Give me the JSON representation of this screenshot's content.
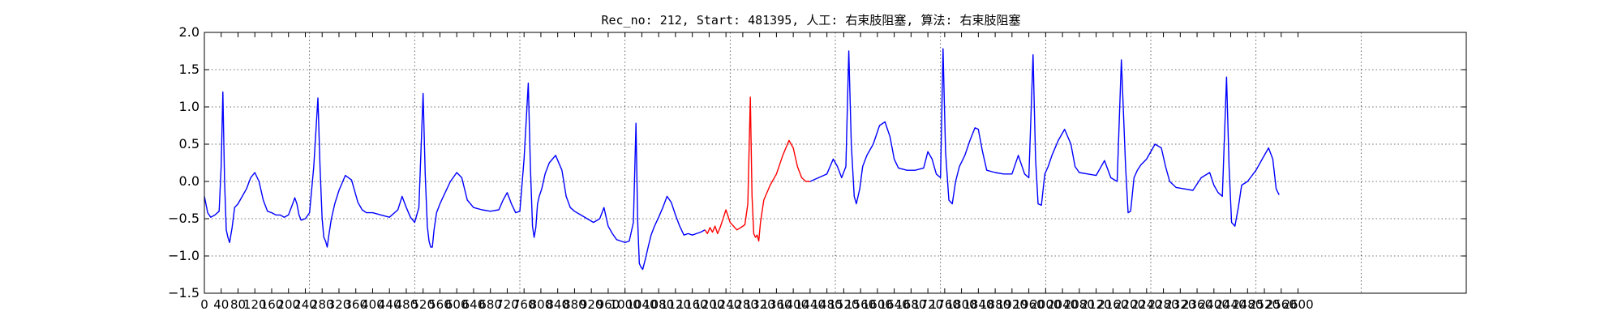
{
  "chart_data": {
    "type": "line",
    "title": "Rec_no: 212, Start: 481395, 人工: 右束肢阻塞, 算法: 右束肢阻塞",
    "xlabel": "",
    "ylabel": "",
    "xlim": [
      0,
      3000
    ],
    "ylim": [
      -1.5,
      2.0
    ],
    "grid": true,
    "y_ticks": [
      -1.5,
      -1.0,
      -0.5,
      0.0,
      0.5,
      1.0,
      1.5,
      2.0
    ],
    "y_tick_labels": [
      "−1.5",
      "−1.0",
      "−0.5",
      "0.0",
      "0.5",
      "1.0",
      "1.5",
      "2.0"
    ],
    "x_ticks": [
      0,
      40,
      80,
      120,
      160,
      200,
      240,
      280,
      320,
      360,
      400,
      440,
      480,
      520,
      560,
      600,
      640,
      680,
      720,
      760,
      800,
      840,
      880,
      920,
      960,
      1000,
      1040,
      1080,
      1120,
      1160,
      1200,
      1240,
      1280,
      1320,
      1360,
      1400,
      1440,
      1480,
      1520,
      1560,
      1600,
      1640,
      1680,
      1720,
      1760,
      1800,
      1840,
      1880,
      1920,
      1960,
      2000,
      2040,
      2080,
      2120,
      2160,
      2200,
      2240,
      2280,
      2320,
      2360,
      2400,
      2440,
      2480,
      2520,
      2560,
      2600
    ],
    "x_tick_labels": [
      "0",
      "40",
      "80",
      "120",
      "160",
      "200",
      "240",
      "280",
      "320",
      "360",
      "400",
      "440",
      "480",
      "520",
      "560",
      "600",
      "640",
      "680",
      "720",
      "760",
      "800",
      "840",
      "880",
      "920",
      "960",
      "1000",
      "1040",
      "1080",
      "1120",
      "1160",
      "1200",
      "1240",
      "1280",
      "1320",
      "1360",
      "1400",
      "1440",
      "1480",
      "1520",
      "1560",
      "1600",
      "1640",
      "1680",
      "1720",
      "1760",
      "1800",
      "1840",
      "1880",
      "1920",
      "1960",
      "2000",
      "2040",
      "2080",
      "2120",
      "2160",
      "2200",
      "2240",
      "2280",
      "2320",
      "2360",
      "2400",
      "2440",
      "2480",
      "2520",
      "2560",
      "2600"
    ],
    "grid_x": [
      0,
      250,
      500,
      750,
      1000,
      1250,
      1500,
      1750,
      2000,
      2250,
      2500,
      2750
    ],
    "series": [
      {
        "color": "#0000ff",
        "x": [
          0,
          8,
          15,
          25,
          35,
          40,
          44,
          48,
          52,
          56,
          60,
          66,
          72,
          80,
          90,
          100,
          110,
          120,
          130,
          140,
          150,
          160,
          170,
          180,
          190,
          200,
          210,
          215,
          220,
          225,
          230,
          240,
          250,
          260,
          270,
          275,
          280,
          284,
          288,
          292,
          296,
          302,
          310,
          320,
          335,
          350,
          365,
          375,
          385,
          400,
          420,
          440,
          460,
          470,
          480,
          490,
          500,
          510,
          520,
          525,
          530,
          534,
          538,
          542,
          546,
          552,
          560,
          570,
          585,
          600,
          612,
          625,
          640,
          660,
          680,
          700,
          710,
          720,
          730,
          740,
          750,
          760,
          770,
          775,
          780,
          784,
          788,
          792,
          796,
          802,
          810,
          820,
          835,
          850,
          860,
          870,
          880,
          895,
          910,
          925,
          940,
          950,
          960,
          970,
          980,
          990,
          1000,
          1010,
          1020,
          1026,
          1030,
          1034,
          1038,
          1042,
          1048,
          1055,
          1062,
          1070,
          1080,
          1090,
          1100,
          1110,
          1120,
          1130,
          1140,
          1150,
          1160,
          1170,
          1180,
          1190
        ],
        "y": [
          -0.2,
          -0.42,
          -0.48,
          -0.45,
          -0.4,
          0.2,
          1.2,
          0.0,
          -0.65,
          -0.75,
          -0.82,
          -0.62,
          -0.35,
          -0.3,
          -0.2,
          -0.1,
          0.05,
          0.12,
          0.0,
          -0.25,
          -0.4,
          -0.42,
          -0.45,
          -0.45,
          -0.48,
          -0.45,
          -0.3,
          -0.22,
          -0.3,
          -0.45,
          -0.52,
          -0.5,
          -0.42,
          0.2,
          1.12,
          0.2,
          -0.5,
          -0.75,
          -0.8,
          -0.88,
          -0.72,
          -0.5,
          -0.3,
          -0.12,
          0.08,
          0.02,
          -0.28,
          -0.38,
          -0.42,
          -0.42,
          -0.45,
          -0.48,
          -0.38,
          -0.2,
          -0.35,
          -0.48,
          -0.55,
          -0.35,
          1.18,
          0.1,
          -0.6,
          -0.8,
          -0.88,
          -0.88,
          -0.65,
          -0.42,
          -0.3,
          -0.18,
          0.0,
          0.12,
          0.05,
          -0.25,
          -0.35,
          -0.38,
          -0.4,
          -0.38,
          -0.25,
          -0.15,
          -0.3,
          -0.42,
          -0.4,
          0.3,
          1.32,
          0.2,
          -0.6,
          -0.75,
          -0.62,
          -0.3,
          -0.2,
          -0.1,
          0.1,
          0.25,
          0.35,
          0.15,
          -0.2,
          -0.35,
          -0.4,
          -0.45,
          -0.5,
          -0.55,
          -0.5,
          -0.35,
          -0.6,
          -0.7,
          -0.78,
          -0.8,
          -0.82,
          -0.8,
          -0.55,
          0.78,
          -0.5,
          -1.1,
          -1.15,
          -1.18,
          -1.05,
          -0.88,
          -0.72,
          -0.6,
          -0.48,
          -0.35,
          -0.2,
          -0.28,
          -0.45,
          -0.6,
          -0.72,
          -0.7,
          -0.72,
          -0.7,
          -0.68,
          -0.65
        ]
      },
      {
        "color": "#ff0000",
        "x": [
          1190,
          1196,
          1202,
          1208,
          1214,
          1220,
          1226,
          1232,
          1240,
          1250,
          1258,
          1266,
          1275,
          1285,
          1292,
          1298,
          1302,
          1306,
          1310,
          1314,
          1318,
          1322,
          1330,
          1345,
          1360,
          1375,
          1390,
          1400,
          1410,
          1420,
          1430,
          1440
        ],
        "y": [
          -0.65,
          -0.7,
          -0.62,
          -0.68,
          -0.6,
          -0.7,
          -0.62,
          -0.52,
          -0.38,
          -0.55,
          -0.6,
          -0.65,
          -0.62,
          -0.58,
          -0.3,
          1.13,
          -0.2,
          -0.7,
          -0.75,
          -0.72,
          -0.8,
          -0.55,
          -0.25,
          -0.05,
          0.1,
          0.35,
          0.55,
          0.45,
          0.2,
          0.05,
          0.0,
          0.0
        ]
      },
      {
        "color": "#0000ff",
        "x": [
          1440,
          1460,
          1480,
          1495,
          1505,
          1515,
          1525,
          1532,
          1538,
          1545,
          1550,
          1558,
          1565,
          1575,
          1590,
          1605,
          1618,
          1630,
          1640,
          1650,
          1670,
          1690,
          1710,
          1720,
          1730,
          1740,
          1750,
          1756,
          1762,
          1770,
          1778,
          1786,
          1795,
          1808,
          1820,
          1832,
          1840,
          1850,
          1860,
          1880,
          1900,
          1920,
          1935,
          1950,
          1960,
          1970,
          1976,
          1982,
          1990,
          1998,
          2006,
          2015,
          2030,
          2045,
          2060,
          2070,
          2080,
          2100,
          2120,
          2140,
          2155,
          2170,
          2180,
          2190,
          2196,
          2202,
          2210,
          2218,
          2226,
          2240,
          2260,
          2275,
          2285,
          2295,
          2310,
          2330,
          2350,
          2370,
          2390,
          2400,
          2410,
          2420,
          2430,
          2436,
          2442,
          2450,
          2458,
          2466,
          2480,
          2500,
          2515,
          2530,
          2540,
          2548,
          2555
        ],
        "y": [
          0.0,
          0.05,
          0.1,
          0.3,
          0.2,
          0.05,
          0.2,
          1.75,
          0.5,
          -0.2,
          -0.3,
          -0.1,
          0.2,
          0.35,
          0.5,
          0.75,
          0.8,
          0.6,
          0.3,
          0.18,
          0.15,
          0.15,
          0.18,
          0.4,
          0.3,
          0.1,
          0.05,
          1.78,
          0.4,
          -0.25,
          -0.3,
          0.0,
          0.2,
          0.35,
          0.55,
          0.72,
          0.7,
          0.4,
          0.15,
          0.12,
          0.1,
          0.1,
          0.35,
          0.1,
          0.05,
          1.7,
          0.3,
          -0.3,
          -0.32,
          0.1,
          0.2,
          0.35,
          0.55,
          0.7,
          0.5,
          0.2,
          0.12,
          0.1,
          0.08,
          0.28,
          0.05,
          0.0,
          1.63,
          0.2,
          -0.42,
          -0.4,
          0.05,
          0.15,
          0.22,
          0.3,
          0.5,
          0.45,
          0.2,
          0.0,
          -0.08,
          -0.1,
          -0.12,
          0.05,
          0.12,
          -0.05,
          -0.15,
          -0.2,
          1.4,
          0.2,
          -0.55,
          -0.6,
          -0.35,
          -0.05,
          0.0,
          0.15,
          0.3,
          0.45,
          0.3,
          -0.1,
          -0.18
        ]
      }
    ]
  }
}
